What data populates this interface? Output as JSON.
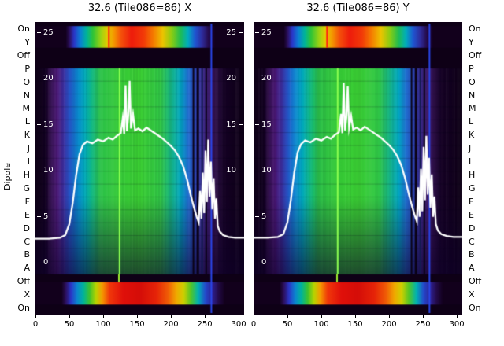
{
  "titles": {
    "left": "32.6 (Tile086=86) X",
    "right": "32.6 (Tile086=86) Y"
  },
  "ylabel": "Dipole",
  "row_labels": [
    "On",
    "Y",
    "Off",
    "P",
    "O",
    "N",
    "M",
    "L",
    "K",
    "J",
    "I",
    "H",
    "G",
    "F",
    "E",
    "D",
    "C",
    "B",
    "A",
    "Off",
    "X",
    "On"
  ],
  "chart_data": {
    "type": "heatmap",
    "description": "Two waterfall/bandpass heatmaps (amplitude vs channel per dipole) with overlaid white bandpass curves",
    "x_range": [
      0,
      308
    ],
    "x_ticks": [
      0,
      50,
      100,
      150,
      200,
      250,
      300
    ],
    "value_ticks": [
      25,
      20,
      15,
      10,
      5,
      0
    ],
    "right_value_ticks": [
      25,
      20,
      15,
      10
    ],
    "value_axis": {
      "max_value": 25,
      "zero_frac": 0.8226,
      "max_frac": 0.0376
    },
    "body_rows": 16,
    "colors": {
      "background": "#0e0016",
      "line": "#ffffff",
      "text": "#000000",
      "tick_text": "#ffffff"
    },
    "regions": {
      "top_strip": [
        0.014,
        0.088
      ],
      "gap1": [
        0.088,
        0.158
      ],
      "body": [
        0.158,
        0.862
      ],
      "gap2": [
        0.862,
        0.889
      ],
      "bottom_strip": [
        0.889,
        0.966
      ]
    },
    "gradients": {
      "body": [
        [
          0,
          "#0e0016"
        ],
        [
          0.05,
          "#120020"
        ],
        [
          0.075,
          "#361253"
        ],
        [
          0.105,
          "#4a1775"
        ],
        [
          0.135,
          "#3c2fa0"
        ],
        [
          0.165,
          "#2457c8"
        ],
        [
          0.2,
          "#0c87d0"
        ],
        [
          0.235,
          "#00a9bb"
        ],
        [
          0.27,
          "#10b884"
        ],
        [
          0.31,
          "#2cc24a"
        ],
        [
          0.4,
          "#36ca38"
        ],
        [
          0.5,
          "#3bcf33"
        ],
        [
          0.6,
          "#30c747"
        ],
        [
          0.65,
          "#17b685"
        ],
        [
          0.695,
          "#01a7c1"
        ],
        [
          0.73,
          "#1f70d1"
        ],
        [
          0.765,
          "#2d47b9"
        ],
        [
          0.8,
          "#3b2b8f"
        ],
        [
          0.835,
          "#411b67"
        ],
        [
          0.868,
          "#2b0e43"
        ],
        [
          0.9,
          "#150225"
        ],
        [
          1,
          "#0e0016"
        ]
      ],
      "top": [
        [
          0,
          "#12001c"
        ],
        [
          0.145,
          "#12001c"
        ],
        [
          0.163,
          "#2c0f5c"
        ],
        [
          0.185,
          "#2a35c8"
        ],
        [
          0.215,
          "#0b7fd4"
        ],
        [
          0.245,
          "#00b49a"
        ],
        [
          0.275,
          "#2ec437"
        ],
        [
          0.315,
          "#9ed312"
        ],
        [
          0.345,
          "#e3cb00"
        ],
        [
          0.375,
          "#f59a00"
        ],
        [
          0.41,
          "#f4520a"
        ],
        [
          0.46,
          "#ee1c0c"
        ],
        [
          0.52,
          "#f23a08"
        ],
        [
          0.565,
          "#f57c00"
        ],
        [
          0.61,
          "#edc400"
        ],
        [
          0.655,
          "#86cd14"
        ],
        [
          0.695,
          "#1fbd52"
        ],
        [
          0.73,
          "#00aebc"
        ],
        [
          0.765,
          "#1f55d2"
        ],
        [
          0.8,
          "#2f2a9a"
        ],
        [
          0.83,
          "#250a4a"
        ],
        [
          0.862,
          "#12001c"
        ],
        [
          1,
          "#12001c"
        ]
      ],
      "bottom": [
        [
          0,
          "#12001c"
        ],
        [
          0.125,
          "#12001c"
        ],
        [
          0.145,
          "#2c0f5c"
        ],
        [
          0.17,
          "#2a35c8"
        ],
        [
          0.2,
          "#0b86cf"
        ],
        [
          0.23,
          "#00b49a"
        ],
        [
          0.26,
          "#3ec22c"
        ],
        [
          0.29,
          "#b8d400"
        ],
        [
          0.32,
          "#f59a00"
        ],
        [
          0.355,
          "#f0380a"
        ],
        [
          0.42,
          "#e0100a"
        ],
        [
          0.5,
          "#d50d08"
        ],
        [
          0.58,
          "#e62408"
        ],
        [
          0.635,
          "#f05c06"
        ],
        [
          0.675,
          "#f0a800"
        ],
        [
          0.71,
          "#cfd000"
        ],
        [
          0.745,
          "#52c626"
        ],
        [
          0.78,
          "#00b2b2"
        ],
        [
          0.815,
          "#2448cc"
        ],
        [
          0.848,
          "#2f2090"
        ],
        [
          0.878,
          "#230a46"
        ],
        [
          0.908,
          "#12001c"
        ],
        [
          1,
          "#12001c"
        ]
      ]
    },
    "artifacts": [
      {
        "region": "top_strip",
        "pos": 0.352,
        "width": 2,
        "color": "#ff2012"
      },
      {
        "region": "body",
        "pos": 0.403,
        "width": 2,
        "color": "#8cff52"
      },
      {
        "region": "gap2",
        "pos": 0.4,
        "width": 2,
        "color": "#9fe830"
      },
      {
        "region": "body",
        "pos": 0.757,
        "width": 2,
        "color": "#0a0216"
      },
      {
        "region": "body",
        "pos": 0.778,
        "width": 3,
        "color": "#0a0216"
      },
      {
        "region": "body",
        "pos": 0.799,
        "width": 2,
        "color": "#151b52"
      },
      {
        "region": "body",
        "pos": 0.818,
        "width": 2,
        "color": "#0a0216"
      },
      {
        "region": "full",
        "pos": 0.843,
        "width": 2,
        "color": "#2946e9"
      }
    ],
    "panels": [
      {
        "name": "X",
        "line": [
          [
            0,
            2.6
          ],
          [
            20,
            2.6
          ],
          [
            36,
            2.7
          ],
          [
            44,
            3.0
          ],
          [
            50,
            4.2
          ],
          [
            55,
            6.5
          ],
          [
            60,
            9.5
          ],
          [
            65,
            11.8
          ],
          [
            70,
            12.8
          ],
          [
            76,
            13.2
          ],
          [
            84,
            13.0
          ],
          [
            92,
            13.4
          ],
          [
            100,
            13.2
          ],
          [
            108,
            13.6
          ],
          [
            114,
            13.4
          ],
          [
            120,
            13.8
          ],
          [
            126,
            14.1
          ],
          [
            129,
            15.8
          ],
          [
            131,
            14.0
          ],
          [
            133,
            19.3
          ],
          [
            135,
            14.3
          ],
          [
            137,
            16.0
          ],
          [
            139,
            19.8
          ],
          [
            141,
            14.6
          ],
          [
            144,
            16.2
          ],
          [
            147,
            14.4
          ],
          [
            152,
            14.6
          ],
          [
            158,
            14.3
          ],
          [
            164,
            14.7
          ],
          [
            170,
            14.4
          ],
          [
            176,
            14.1
          ],
          [
            182,
            13.8
          ],
          [
            188,
            13.5
          ],
          [
            194,
            13.1
          ],
          [
            200,
            12.7
          ],
          [
            206,
            12.2
          ],
          [
            212,
            11.5
          ],
          [
            218,
            10.5
          ],
          [
            224,
            9.0
          ],
          [
            229,
            7.4
          ],
          [
            234,
            6.0
          ],
          [
            238,
            5.0
          ],
          [
            241,
            4.4
          ],
          [
            243,
            7.8
          ],
          [
            245,
            4.8
          ],
          [
            247,
            9.8
          ],
          [
            249,
            5.4
          ],
          [
            251,
            12.2
          ],
          [
            253,
            6.6
          ],
          [
            255,
            13.4
          ],
          [
            257,
            7.2
          ],
          [
            259,
            11.0
          ],
          [
            261,
            5.8
          ],
          [
            263,
            9.2
          ],
          [
            265,
            4.8
          ],
          [
            267,
            7.0
          ],
          [
            269,
            4.0
          ],
          [
            272,
            3.4
          ],
          [
            277,
            3.0
          ],
          [
            285,
            2.8
          ],
          [
            295,
            2.7
          ],
          [
            308,
            2.7
          ]
        ]
      },
      {
        "name": "Y",
        "line": [
          [
            0,
            2.7
          ],
          [
            20,
            2.7
          ],
          [
            36,
            2.8
          ],
          [
            44,
            3.1
          ],
          [
            50,
            4.4
          ],
          [
            55,
            6.8
          ],
          [
            60,
            9.8
          ],
          [
            65,
            12.0
          ],
          [
            70,
            12.9
          ],
          [
            76,
            13.3
          ],
          [
            84,
            13.1
          ],
          [
            92,
            13.5
          ],
          [
            100,
            13.3
          ],
          [
            108,
            13.7
          ],
          [
            114,
            13.5
          ],
          [
            120,
            13.9
          ],
          [
            126,
            14.2
          ],
          [
            129,
            16.2
          ],
          [
            131,
            14.1
          ],
          [
            133,
            19.6
          ],
          [
            135,
            14.4
          ],
          [
            137,
            15.8
          ],
          [
            139,
            19.2
          ],
          [
            141,
            14.7
          ],
          [
            144,
            16.0
          ],
          [
            147,
            14.5
          ],
          [
            152,
            14.7
          ],
          [
            158,
            14.4
          ],
          [
            164,
            14.8
          ],
          [
            170,
            14.5
          ],
          [
            176,
            14.2
          ],
          [
            182,
            13.9
          ],
          [
            188,
            13.6
          ],
          [
            194,
            13.2
          ],
          [
            200,
            12.8
          ],
          [
            206,
            12.3
          ],
          [
            212,
            11.6
          ],
          [
            218,
            10.6
          ],
          [
            224,
            9.1
          ],
          [
            229,
            7.5
          ],
          [
            234,
            6.1
          ],
          [
            238,
            5.1
          ],
          [
            241,
            4.5
          ],
          [
            243,
            8.2
          ],
          [
            245,
            5.0
          ],
          [
            247,
            10.2
          ],
          [
            249,
            5.6
          ],
          [
            251,
            12.6
          ],
          [
            253,
            6.8
          ],
          [
            255,
            13.8
          ],
          [
            257,
            7.4
          ],
          [
            259,
            11.4
          ],
          [
            261,
            6.0
          ],
          [
            263,
            9.6
          ],
          [
            265,
            5.0
          ],
          [
            267,
            7.2
          ],
          [
            269,
            4.2
          ],
          [
            272,
            3.5
          ],
          [
            277,
            3.1
          ],
          [
            285,
            2.9
          ],
          [
            295,
            2.8
          ],
          [
            308,
            2.8
          ]
        ]
      }
    ]
  }
}
